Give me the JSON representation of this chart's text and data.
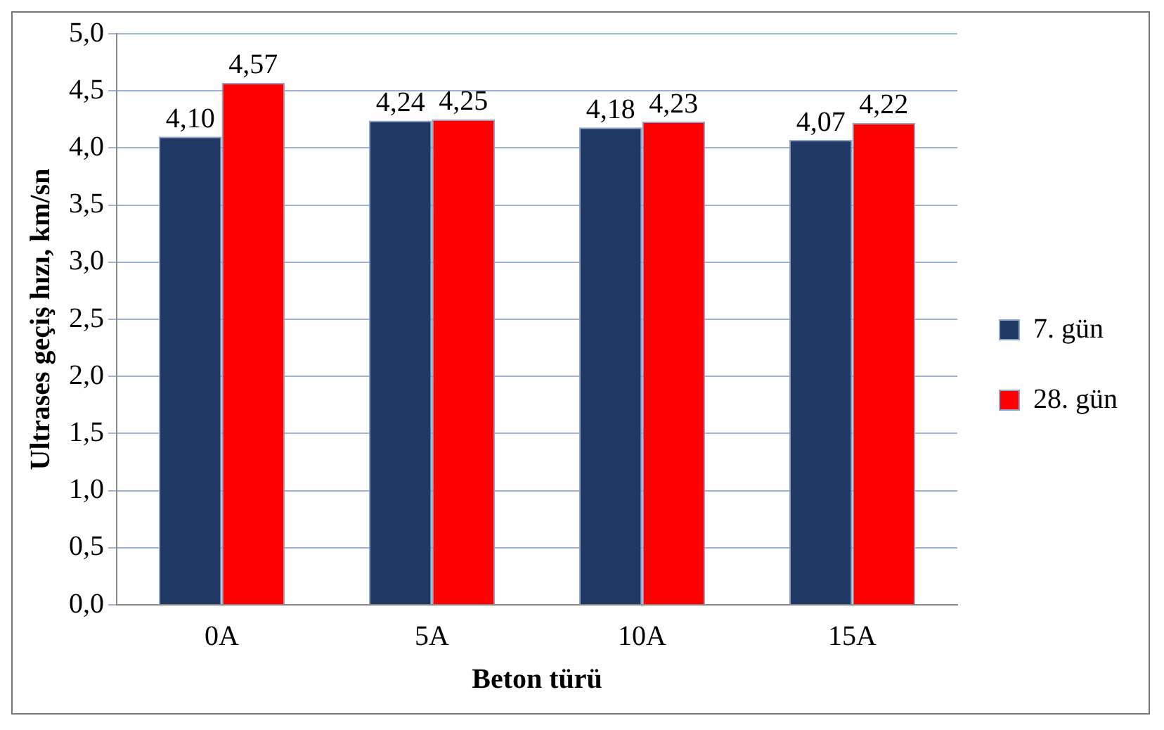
{
  "chart_data": {
    "type": "bar",
    "xlabel": "Beton türü",
    "ylabel": "Ultrases geçiş hızı, km/sn",
    "categories": [
      "0A",
      "5A",
      "10A",
      "15A"
    ],
    "series": [
      {
        "name": "7. gün",
        "color": "#1f3864",
        "values": [
          4.1,
          4.24,
          4.18,
          4.07
        ],
        "value_labels": [
          "4,10",
          "4,24",
          "4,18",
          "4,07"
        ]
      },
      {
        "name": "28. gün",
        "color": "#ff0000",
        "values": [
          4.57,
          4.25,
          4.23,
          4.22
        ],
        "value_labels": [
          "4,57",
          "4,25",
          "4,23",
          "4,22"
        ]
      }
    ],
    "ylim": [
      0,
      5
    ],
    "yticks": [
      {
        "value": 0,
        "label": "0,0"
      },
      {
        "value": 0.5,
        "label": "0,5"
      },
      {
        "value": 1,
        "label": "1,0"
      },
      {
        "value": 1.5,
        "label": "1,5"
      },
      {
        "value": 2,
        "label": "2,0"
      },
      {
        "value": 2.5,
        "label": "2,5"
      },
      {
        "value": 3,
        "label": "3,0"
      },
      {
        "value": 3.5,
        "label": "3,5"
      },
      {
        "value": 4,
        "label": "4,0"
      },
      {
        "value": 4.5,
        "label": "4,5"
      },
      {
        "value": 5,
        "label": "5,0"
      }
    ],
    "grid": "y",
    "legend": "right"
  }
}
